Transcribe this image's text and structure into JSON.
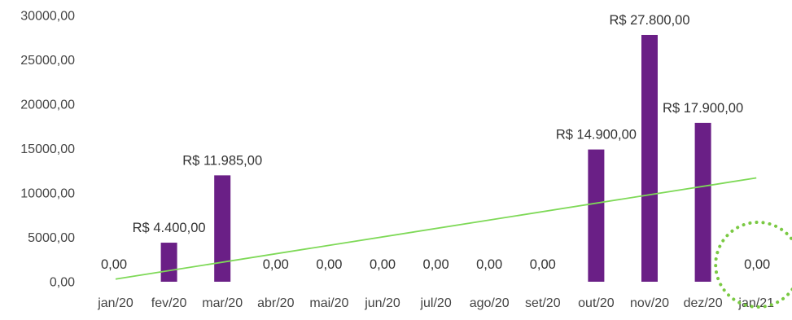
{
  "chart_data": {
    "type": "bar",
    "title": "",
    "xlabel": "",
    "ylabel": "",
    "ylim": [
      0,
      30000
    ],
    "ytick_values": [
      0,
      5000,
      10000,
      15000,
      20000,
      25000,
      30000
    ],
    "ytick_labels": [
      "0,00",
      "5000,00",
      "10000,00",
      "15000,00",
      "20000,00",
      "25000,00",
      "30000,00"
    ],
    "grid": false,
    "legend": "none",
    "categories": [
      "jan/20",
      "fev/20",
      "mar/20",
      "abr/20",
      "mai/20",
      "jun/20",
      "jul/20",
      "ago/20",
      "set/20",
      "out/20",
      "nov/20",
      "dez/20",
      "jan/21"
    ],
    "values": [
      0,
      4400,
      11985,
      0,
      0,
      0,
      0,
      0,
      0,
      14900,
      27800,
      17900,
      0
    ],
    "data_labels": [
      "0,00",
      "R$ 4.400,00",
      "R$ 11.985,00",
      "0,00",
      "0,00",
      "0,00",
      "0,00",
      "0,00",
      "0,00",
      "R$ 14.900,00",
      "R$ 27.800,00",
      "R$ 17.900,00",
      "0,00"
    ],
    "trendline": {
      "type": "linear",
      "start_value": 300,
      "end_value": 11700
    },
    "highlight_category": "jan/21",
    "colors": {
      "bar": "#6a1f86",
      "trend": "#7ed957",
      "highlight": "#7ac943",
      "text": "#444444"
    }
  }
}
